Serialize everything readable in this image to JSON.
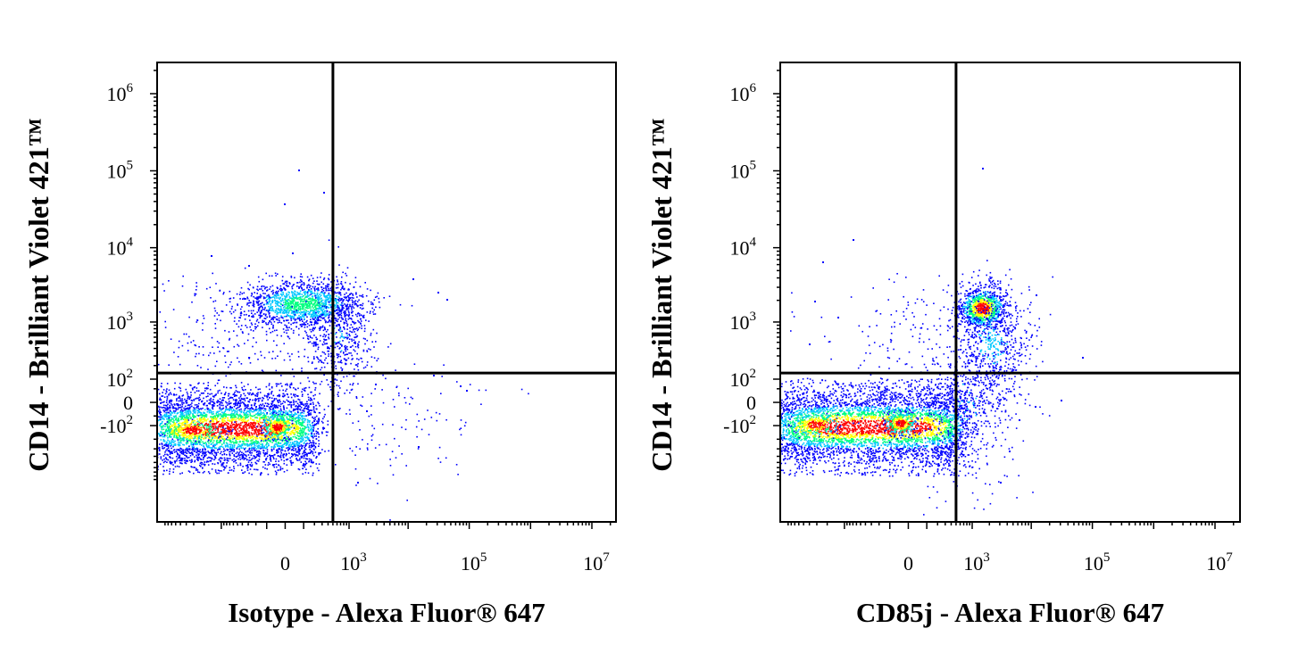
{
  "chart_data": [
    {
      "type": "scatter",
      "subtype": "flow-cytometry-density-dot-plot",
      "xlabel": "Isotype - Alexa Fluor® 647",
      "ylabel": "CD14 - Brilliant Violet 421™",
      "x_scale": "biexponential",
      "y_scale": "biexponential",
      "x_ticks": [
        {
          "value": 0,
          "base": "0",
          "exp": ""
        },
        {
          "value": 1000,
          "base": "10",
          "exp": "3"
        },
        {
          "value": 100000,
          "base": "10",
          "exp": "5"
        },
        {
          "value": 10000000,
          "base": "10",
          "exp": "7"
        }
      ],
      "y_ticks": [
        {
          "value": 1000000,
          "base": "10",
          "exp": "6"
        },
        {
          "value": 100000,
          "base": "10",
          "exp": "5"
        },
        {
          "value": 10000,
          "base": "10",
          "exp": "4"
        },
        {
          "value": 1000,
          "base": "10",
          "exp": "3"
        },
        {
          "value": 100,
          "base": "10",
          "exp": "2"
        },
        {
          "value": 0,
          "base": "0",
          "exp": ""
        },
        {
          "value": -100,
          "base": "-10",
          "exp": "2"
        }
      ],
      "quadrant_gate": {
        "x": 500,
        "y": 140
      },
      "populations": [
        {
          "x": 10,
          "y": 0,
          "density": "high"
        },
        {
          "x": 120,
          "y": 1000,
          "density": "medium"
        }
      ],
      "grid": false,
      "legend": "none",
      "density_colormap": [
        "#0000ff",
        "#00c8ff",
        "#00ff80",
        "#ffff00",
        "#ff0000"
      ]
    },
    {
      "type": "scatter",
      "subtype": "flow-cytometry-density-dot-plot",
      "xlabel": "CD85j - Alexa Fluor® 647",
      "ylabel": "CD14 - Brilliant Violet 421™",
      "x_scale": "biexponential",
      "y_scale": "biexponential",
      "x_ticks": [
        {
          "value": 0,
          "base": "0",
          "exp": ""
        },
        {
          "value": 1000,
          "base": "10",
          "exp": "3"
        },
        {
          "value": 100000,
          "base": "10",
          "exp": "5"
        },
        {
          "value": 10000000,
          "base": "10",
          "exp": "7"
        }
      ],
      "y_ticks": [
        {
          "value": 1000000,
          "base": "10",
          "exp": "6"
        },
        {
          "value": 100000,
          "base": "10",
          "exp": "5"
        },
        {
          "value": 10000,
          "base": "10",
          "exp": "4"
        },
        {
          "value": 1000,
          "base": "10",
          "exp": "3"
        },
        {
          "value": 100,
          "base": "10",
          "exp": "2"
        },
        {
          "value": 0,
          "base": "0",
          "exp": ""
        },
        {
          "value": -100,
          "base": "-10",
          "exp": "2"
        }
      ],
      "quadrant_gate": {
        "x": 500,
        "y": 140
      },
      "populations": [
        {
          "x": 10,
          "y": 0,
          "density": "high"
        },
        {
          "x": 1800,
          "y": 1000,
          "density": "high"
        }
      ],
      "grid": false,
      "legend": "none",
      "density_colormap": [
        "#0000ff",
        "#00c8ff",
        "#00ff80",
        "#ffff00",
        "#ff0000"
      ]
    }
  ]
}
